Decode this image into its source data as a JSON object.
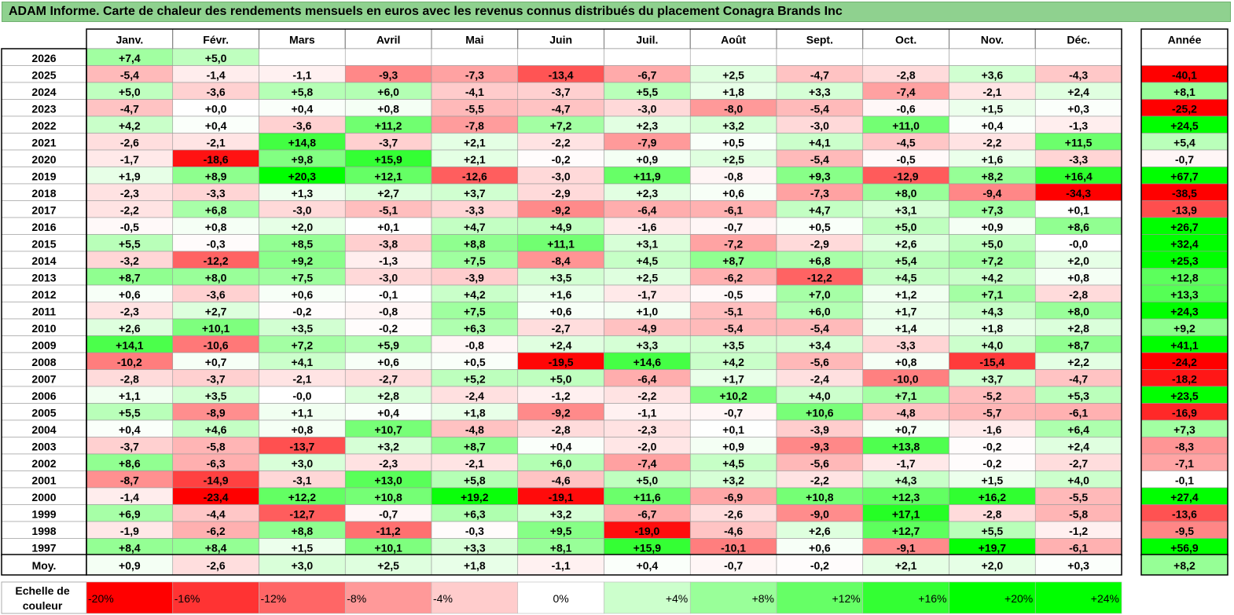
{
  "title": "ADAM Informe. Carte de chaleur des rendements mensuels en euros avec les revenus connus distribués du placement Conagra Brands Inc",
  "chart_data": {
    "type": "heatmap",
    "months": [
      "Janv.",
      "Févr.",
      "Mars",
      "Avril",
      "Mai",
      "Juin",
      "Juil.",
      "Août",
      "Sept.",
      "Oct.",
      "Nov.",
      "Déc."
    ],
    "year_column_label": "Année",
    "rows": [
      {
        "year": "2026",
        "months": [
          "+7,4",
          "+5,0",
          "",
          "",
          "",
          "",
          "",
          "",
          "",
          "",
          "",
          ""
        ],
        "annual": ""
      },
      {
        "year": "2025",
        "months": [
          "-5,4",
          "-1,4",
          "-1,1",
          "-9,3",
          "-7,3",
          "-13,4",
          "-6,7",
          "+2,5",
          "-4,7",
          "-2,8",
          "+3,6",
          "-4,3"
        ],
        "annual": "-40,1"
      },
      {
        "year": "2024",
        "months": [
          "+5,0",
          "-3,6",
          "+5,8",
          "+6,0",
          "-4,1",
          "-3,7",
          "+5,5",
          "+1,8",
          "+3,3",
          "-7,4",
          "-2,1",
          "+2,4"
        ],
        "annual": "+8,1"
      },
      {
        "year": "2023",
        "months": [
          "-4,7",
          "+0,0",
          "+0,4",
          "+0,8",
          "-5,5",
          "-4,7",
          "-3,0",
          "-8,0",
          "-5,4",
          "-0,6",
          "+1,5",
          "+0,3"
        ],
        "annual": "-25,2"
      },
      {
        "year": "2022",
        "months": [
          "+4,2",
          "+0,4",
          "-3,6",
          "+11,2",
          "-7,8",
          "+7,2",
          "+2,3",
          "+3,2",
          "-3,0",
          "+11,0",
          "+0,4",
          "-1,3"
        ],
        "annual": "+24,5"
      },
      {
        "year": "2021",
        "months": [
          "-2,6",
          "-2,1",
          "+14,8",
          "-3,7",
          "+2,1",
          "-2,2",
          "-7,9",
          "+0,5",
          "+4,1",
          "-4,5",
          "-2,2",
          "+11,5"
        ],
        "annual": "+5,4"
      },
      {
        "year": "2020",
        "months": [
          "-1,7",
          "-18,6",
          "+9,8",
          "+15,9",
          "+2,1",
          "-0,2",
          "+0,9",
          "+2,5",
          "-5,4",
          "-0,5",
          "+1,6",
          "-3,3"
        ],
        "annual": "-0,7"
      },
      {
        "year": "2019",
        "months": [
          "+1,9",
          "+8,9",
          "+20,3",
          "+12,1",
          "-12,6",
          "-3,0",
          "+11,9",
          "-0,8",
          "+9,3",
          "-12,9",
          "+8,2",
          "+16,4"
        ],
        "annual": "+67,7"
      },
      {
        "year": "2018",
        "months": [
          "-2,3",
          "-3,3",
          "+1,3",
          "+2,7",
          "+3,7",
          "-2,9",
          "+2,3",
          "+0,6",
          "-7,3",
          "+8,0",
          "-9,4",
          "-34,3"
        ],
        "annual": "-38,5"
      },
      {
        "year": "2017",
        "months": [
          "-2,2",
          "+6,8",
          "-3,0",
          "-5,1",
          "-3,3",
          "-9,2",
          "-6,4",
          "-6,1",
          "+4,7",
          "+3,1",
          "+7,3",
          "+0,1"
        ],
        "annual": "-13,9"
      },
      {
        "year": "2016",
        "months": [
          "-0,5",
          "+0,8",
          "+2,0",
          "+0,1",
          "+4,7",
          "+4,9",
          "-1,6",
          "-0,7",
          "+0,5",
          "+5,0",
          "+0,9",
          "+8,6"
        ],
        "annual": "+26,7"
      },
      {
        "year": "2015",
        "months": [
          "+5,5",
          "-0,3",
          "+8,5",
          "-3,8",
          "+8,8",
          "+11,1",
          "+3,1",
          "-7,2",
          "-2,9",
          "+2,6",
          "+5,0",
          "-0,0"
        ],
        "annual": "+32,4"
      },
      {
        "year": "2014",
        "months": [
          "-3,2",
          "-12,2",
          "+9,2",
          "-1,3",
          "+7,5",
          "-8,4",
          "+4,5",
          "+8,7",
          "+6,8",
          "+5,4",
          "+7,2",
          "+2,0"
        ],
        "annual": "+25,3"
      },
      {
        "year": "2013",
        "months": [
          "+8,7",
          "+8,0",
          "+7,5",
          "-3,0",
          "-3,9",
          "+3,5",
          "+2,5",
          "-6,2",
          "-12,2",
          "+4,5",
          "+4,2",
          "+0,8"
        ],
        "annual": "+12,8"
      },
      {
        "year": "2012",
        "months": [
          "+0,6",
          "-3,6",
          "+0,6",
          "-0,1",
          "+4,2",
          "+1,6",
          "-1,7",
          "-0,5",
          "+7,0",
          "+1,2",
          "+7,1",
          "-2,8"
        ],
        "annual": "+13,3"
      },
      {
        "year": "2011",
        "months": [
          "-2,3",
          "+2,7",
          "-0,2",
          "-0,8",
          "+7,5",
          "+0,6",
          "+1,0",
          "-5,1",
          "+6,0",
          "+1,7",
          "+4,3",
          "+8,0"
        ],
        "annual": "+24,3"
      },
      {
        "year": "2010",
        "months": [
          "+2,6",
          "+10,1",
          "+3,5",
          "-0,2",
          "+6,3",
          "-2,7",
          "-4,9",
          "-5,4",
          "-5,4",
          "+1,4",
          "+1,8",
          "+2,8"
        ],
        "annual": "+9,2"
      },
      {
        "year": "2009",
        "months": [
          "+14,1",
          "-10,6",
          "+7,2",
          "+5,9",
          "-0,8",
          "+2,4",
          "+3,3",
          "+3,5",
          "+3,4",
          "-3,3",
          "+4,0",
          "+8,7"
        ],
        "annual": "+41,1"
      },
      {
        "year": "2008",
        "months": [
          "-10,2",
          "+0,7",
          "+4,1",
          "+0,6",
          "+0,5",
          "-19,5",
          "+14,6",
          "+4,2",
          "-5,6",
          "+0,8",
          "-15,4",
          "+2,2"
        ],
        "annual": "-24,2"
      },
      {
        "year": "2007",
        "months": [
          "-2,8",
          "-3,7",
          "-2,1",
          "-2,7",
          "+5,2",
          "+5,0",
          "-6,4",
          "+1,7",
          "-2,4",
          "-10,0",
          "+3,7",
          "-4,7"
        ],
        "annual": "-18,2"
      },
      {
        "year": "2006",
        "months": [
          "+1,1",
          "+3,5",
          "-0,0",
          "+2,8",
          "-2,4",
          "-1,2",
          "-2,2",
          "+10,2",
          "+4,0",
          "+7,1",
          "-5,2",
          "+5,3"
        ],
        "annual": "+23,5"
      },
      {
        "year": "2005",
        "months": [
          "+5,5",
          "-8,9",
          "+1,1",
          "+0,4",
          "+1,8",
          "-9,2",
          "-1,1",
          "-0,7",
          "+10,6",
          "-4,8",
          "-5,7",
          "-6,1"
        ],
        "annual": "-16,9"
      },
      {
        "year": "2004",
        "months": [
          "+0,4",
          "+4,6",
          "+0,8",
          "+10,7",
          "-4,8",
          "-2,8",
          "-2,3",
          "+0,1",
          "-3,9",
          "+0,7",
          "-1,6",
          "+6,4"
        ],
        "annual": "+7,3"
      },
      {
        "year": "2003",
        "months": [
          "-3,7",
          "-5,8",
          "-13,7",
          "+3,2",
          "+8,7",
          "+0,4",
          "-2,0",
          "+0,9",
          "-9,3",
          "+13,8",
          "-0,2",
          "+2,4"
        ],
        "annual": "-8,3"
      },
      {
        "year": "2002",
        "months": [
          "+8,6",
          "-6,3",
          "+3,0",
          "-2,3",
          "-2,1",
          "+6,0",
          "-7,4",
          "+4,5",
          "-5,6",
          "-1,7",
          "-0,2",
          "-2,7"
        ],
        "annual": "-7,1"
      },
      {
        "year": "2001",
        "months": [
          "-8,7",
          "-14,9",
          "-3,1",
          "+13,0",
          "+5,8",
          "-4,6",
          "+5,0",
          "+3,2",
          "-2,2",
          "+4,3",
          "+1,5",
          "+4,0"
        ],
        "annual": "-0,1"
      },
      {
        "year": "2000",
        "months": [
          "-1,4",
          "-23,4",
          "+12,2",
          "+10,8",
          "+19,2",
          "-19,1",
          "+11,6",
          "-6,9",
          "+10,8",
          "+12,3",
          "+16,2",
          "-5,5"
        ],
        "annual": "+27,4"
      },
      {
        "year": "1999",
        "months": [
          "+6,9",
          "-4,4",
          "-12,7",
          "-0,7",
          "+6,3",
          "+3,2",
          "-6,7",
          "-2,6",
          "-9,0",
          "+17,1",
          "-2,8",
          "-5,8"
        ],
        "annual": "-13,6"
      },
      {
        "year": "1998",
        "months": [
          "-1,9",
          "-6,2",
          "+8,8",
          "-11,2",
          "-0,3",
          "+9,5",
          "-19,0",
          "-4,6",
          "+2,6",
          "+12,7",
          "+5,5",
          "-1,2"
        ],
        "annual": "-9,5"
      },
      {
        "year": "1997",
        "months": [
          "+8,4",
          "+8,4",
          "+1,5",
          "+10,1",
          "+3,3",
          "+8,1",
          "+15,9",
          "-10,1",
          "+0,6",
          "-9,1",
          "+19,7",
          "-6,1"
        ],
        "annual": "+56,9"
      }
    ],
    "average": {
      "label": "Moy.",
      "months": [
        "+0,9",
        "-2,6",
        "+3,0",
        "+2,5",
        "+1,8",
        "-1,1",
        "+0,4",
        "-0,7",
        "-0,2",
        "+2,1",
        "+2,0",
        "+0,3"
      ],
      "annual": "+8,2"
    },
    "scale": {
      "label": "Echelle de couleur",
      "steps": [
        {
          "label": "-20%",
          "value": -20,
          "color": "#ff0000"
        },
        {
          "label": "-16%",
          "value": -16,
          "color": "#ff3333"
        },
        {
          "label": "-12%",
          "value": -12,
          "color": "#ff6666"
        },
        {
          "label": "-8%",
          "value": -8,
          "color": "#ff9999"
        },
        {
          "label": "-4%",
          "value": -4,
          "color": "#ffcccc"
        },
        {
          "label": "0%",
          "value": 0,
          "color": "#ffffff"
        },
        {
          "label": "+4%",
          "value": 4,
          "color": "#ccffcc"
        },
        {
          "label": "+8%",
          "value": 8,
          "color": "#99ff99"
        },
        {
          "label": "+12%",
          "value": 12,
          "color": "#66ff66"
        },
        {
          "label": "+16%",
          "value": 16,
          "color": "#33ff33"
        },
        {
          "label": "+20%",
          "value": 20,
          "color": "#00ff00"
        },
        {
          "label": "+24%",
          "value": 24,
          "color": "#00ff00"
        }
      ]
    }
  }
}
